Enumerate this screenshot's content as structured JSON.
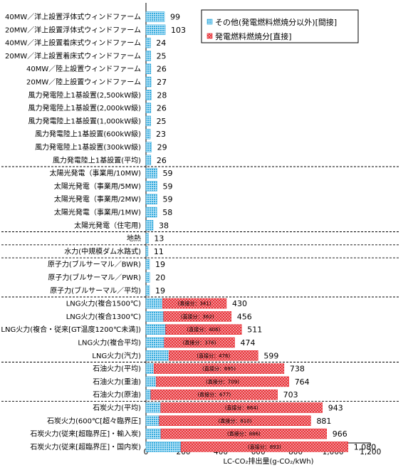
{
  "chart_data": {
    "type": "bar",
    "orientation": "horizontal",
    "stacked": true,
    "categories": [
      "40MW／洋上設置浮体式ウィンドファーム",
      "20MW／洋上設置浮体式ウィンドファーム",
      "40MW／洋上設置着床式ウィンドファーム",
      "20MW／洋上設置着床式ウィンドファーム",
      "40MW／陸上設置ウィンドファーム",
      "20MW／陸上設置ウィンドファーム",
      "風力発電陸上1基設置(2,500kW級)",
      "風力発電陸上1基設置(2,000kW級)",
      "風力発電陸上1基設置(1,000kW級)",
      "風力発電陸上1基設置(600kW級)",
      "風力発電陸上1基設置(300kW級)",
      "風力発電陸上1基設置(平均)",
      "太陽光発電（事業用/10MW)",
      "太陽光発電（事業用/5MW)",
      "太陽光発電（事業用/2MW)",
      "太陽光発電（事業用/1MW)",
      "太陽光発電（住宅用)",
      "地熱",
      "水力(中規模ダム水路式)",
      "原子力(ブルサーマル／BWR)",
      "原子力(ブルサーマル／PWR)",
      "原子力(ブルサーマル／平均)",
      "LNG火力(複合1500℃)",
      "LNG火力(複合1300℃)",
      "LNG火力(複合・従来[GT温度1200℃未満])",
      "LNG火力(複合平均)",
      "LNG火力(汽力)",
      "石油火力(平均)",
      "石油火力(重油)",
      "石油火力(原油)",
      "石炭火力(平均)",
      "石炭火力(600℃[超々臨界圧]",
      "石炭火力(従来[超臨界圧]・輸入炭)",
      "石炭火力(従来[超臨界圧]・国内炭)"
    ],
    "totals": [
      99,
      103,
      24,
      25,
      26,
      27,
      28,
      26,
      25,
      23,
      29,
      26,
      59,
      59,
      59,
      58,
      38,
      13,
      11,
      19,
      20,
      19,
      430,
      456,
      511,
      474,
      599,
      738,
      764,
      703,
      943,
      881,
      966,
      "1,080"
    ],
    "totals_numeric": [
      99,
      103,
      24,
      25,
      26,
      27,
      28,
      26,
      25,
      23,
      29,
      26,
      59,
      59,
      59,
      58,
      38,
      13,
      11,
      19,
      20,
      19,
      430,
      456,
      511,
      474,
      599,
      738,
      764,
      703,
      943,
      881,
      966,
      1080
    ],
    "direct": [
      0,
      0,
      0,
      0,
      0,
      0,
      0,
      0,
      0,
      0,
      0,
      0,
      0,
      0,
      0,
      0,
      0,
      0,
      0,
      0,
      0,
      0,
      341,
      362,
      406,
      376,
      476,
      695,
      709,
      677,
      864,
      810,
      886,
      893
    ],
    "direct_label_prefix": "(直接分：",
    "direct_label_suffix": ")",
    "series": [
      {
        "name": "その他(発電燃料燃焼分以外)[間接]",
        "color": "#33aadd",
        "pattern": "grid"
      },
      {
        "name": "発電燃料燃焼分[直接]",
        "color": "#e8232a",
        "pattern": "diamond"
      }
    ],
    "group_breaks_after": [
      11,
      16,
      17,
      18,
      21,
      26,
      29
    ],
    "xlim": [
      0,
      1200
    ],
    "xticks": [
      "0",
      "200",
      "400",
      "600",
      "800",
      "1,000",
      "1,200"
    ],
    "xtick_values": [
      0,
      200,
      400,
      600,
      800,
      1000,
      1200
    ],
    "xlabel": "LC-CO₂排出量(g-CO₂/kWh)",
    "legend_position": "top-right",
    "grid": false
  }
}
